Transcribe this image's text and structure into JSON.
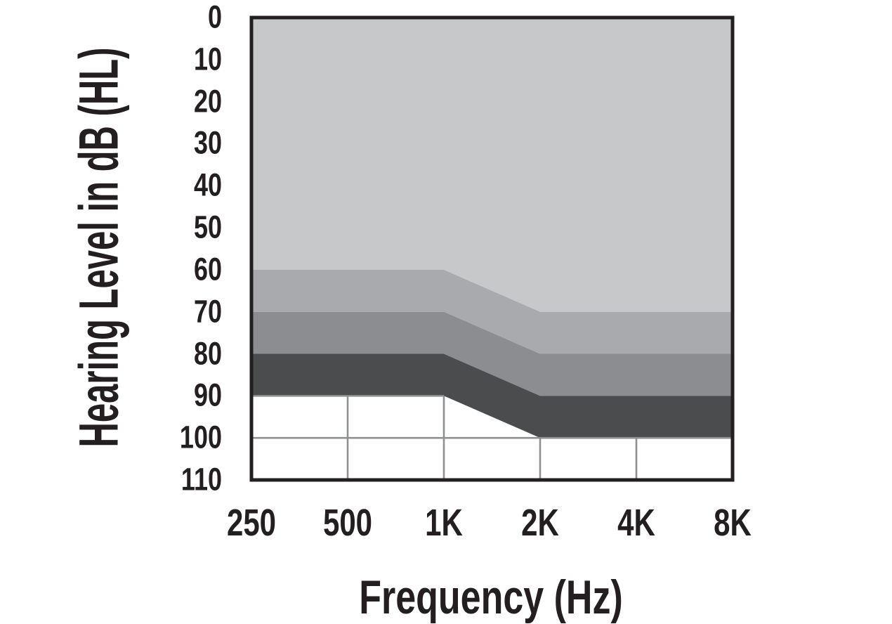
{
  "chart_data": {
    "type": "area",
    "title": "",
    "xlabel": "Frequency (Hz)",
    "ylabel": "Hearing Level in dB (HL)",
    "x_categories": [
      "250",
      "500",
      "1K",
      "2K",
      "4K",
      "8K"
    ],
    "y_ticks": [
      "0",
      "10",
      "20",
      "30",
      "40",
      "50",
      "60",
      "70",
      "80",
      "90",
      "100",
      "110"
    ],
    "y_axis": {
      "min": 0,
      "max": 110,
      "inverted": true,
      "unit": "dB HL"
    },
    "legend": "none",
    "series": [
      {
        "name": "shaded-band-lightest",
        "color": "#c7c8ca",
        "upper_db": [
          0,
          0,
          0,
          0,
          0,
          0
        ],
        "lower_db": [
          60,
          60,
          60,
          70,
          70,
          70
        ]
      },
      {
        "name": "shaded-band-light",
        "color": "#a8aaad",
        "upper_db": [
          60,
          60,
          60,
          70,
          70,
          70
        ],
        "lower_db": [
          70,
          70,
          70,
          80,
          80,
          80
        ]
      },
      {
        "name": "shaded-band-medium",
        "color": "#8b8d90",
        "upper_db": [
          70,
          70,
          70,
          80,
          80,
          80
        ],
        "lower_db": [
          80,
          80,
          80,
          90,
          90,
          90
        ]
      },
      {
        "name": "shaded-band-dark",
        "color": "#4b4c4e",
        "upper_db": [
          80,
          80,
          80,
          90,
          90,
          90
        ],
        "lower_db": [
          90,
          90,
          90,
          100,
          100,
          100
        ]
      }
    ],
    "gridlines": {
      "color": "#8e9092",
      "horizontal": [
        {
          "db": 90,
          "from": "250",
          "to": "1K"
        },
        {
          "db": 100,
          "from": "250",
          "to": "8K"
        }
      ],
      "vertical": [
        {
          "at": "500",
          "from_db": 90,
          "to_db": 110
        },
        {
          "at": "1K",
          "from_db": 90,
          "to_db": 110
        },
        {
          "at": "2K",
          "from_db": 100,
          "to_db": 110
        },
        {
          "at": "4K",
          "from_db": 100,
          "to_db": 110
        }
      ]
    },
    "colors": {
      "axis": "#231f20",
      "background": "#ffffff",
      "text": "#231f20"
    }
  }
}
